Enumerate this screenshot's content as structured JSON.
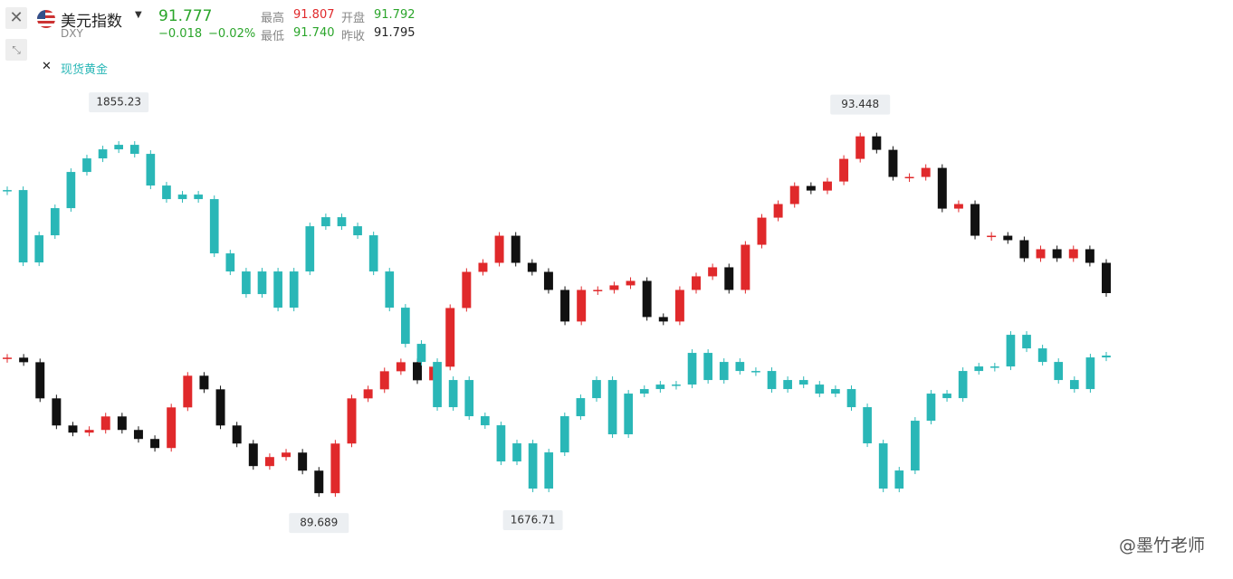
{
  "header": {
    "symbol": "DXY",
    "last": "91.777",
    "change": "−0.018",
    "change_pct": "−0.02%",
    "high_label": "最高",
    "high": "91.807",
    "open_label": "开盘",
    "open": "91.792",
    "low_label": "最低",
    "low": "91.740",
    "prev_label": "昨收",
    "prev": "91.795"
  },
  "watermark": "@墨竹老师",
  "chart_data": {
    "type": "candlestick",
    "ylim": [
      89.08,
      94.0
    ],
    "y2lim": [
      1646.4,
      1880.4
    ],
    "series": [
      {
        "name": "美元指数",
        "color_up": "#e0292b",
        "color_down": "#111111",
        "high": 93.448,
        "low": 89.689,
        "values": [
          91.127,
          91.081,
          90.717,
          90.444,
          90.372,
          90.399,
          90.535,
          90.399,
          90.308,
          90.217,
          90.626,
          90.945,
          90.808,
          90.444,
          90.262,
          90.035,
          90.126,
          90.171,
          89.989,
          89.762,
          90.262,
          90.717,
          90.808,
          90.99,
          91.081,
          90.899,
          91.036,
          91.627,
          91.991,
          92.082,
          92.355,
          92.082,
          91.991,
          91.809,
          91.491,
          91.809,
          91.809,
          91.855,
          91.9,
          91.536,
          91.491,
          91.809,
          91.946,
          92.037,
          91.809,
          92.264,
          92.537,
          92.674,
          92.856,
          92.81,
          92.901,
          93.129,
          93.356,
          93.22,
          92.947,
          92.947,
          93.038,
          92.628,
          92.674,
          92.355,
          92.355,
          92.31,
          92.128,
          92.219,
          92.128,
          92.219,
          92.082,
          91.777
        ]
      },
      {
        "name": "现货黄金",
        "axis": "y2",
        "color": "#2ab7b7",
        "high": 1855.23,
        "low": 1676.71,
        "values": [
          1824.03,
          1789.37,
          1802.37,
          1815.37,
          1832.7,
          1839.2,
          1843.53,
          1845.7,
          1841.37,
          1826.2,
          1819.7,
          1821.87,
          1819.7,
          1793.7,
          1785.04,
          1774.2,
          1785.04,
          1767.7,
          1785.04,
          1806.7,
          1811.03,
          1806.7,
          1802.37,
          1785.04,
          1767.7,
          1750.37,
          1741.7,
          1720.04,
          1733.04,
          1715.71,
          1711.37,
          1694.04,
          1702.71,
          1681.04,
          1698.38,
          1715.71,
          1724.37,
          1733.04,
          1707.04,
          1726.54,
          1728.71,
          1730.87,
          1730.87,
          1746.04,
          1733.04,
          1741.7,
          1737.37,
          1737.37,
          1728.71,
          1733.04,
          1730.87,
          1726.54,
          1728.71,
          1720.04,
          1702.71,
          1681.04,
          1689.71,
          1713.54,
          1726.54,
          1724.37,
          1737.37,
          1739.54,
          1739.54,
          1754.7,
          1748.2,
          1741.7,
          1733.04,
          1728.71,
          1743.87,
          1744.74
        ]
      }
    ]
  }
}
